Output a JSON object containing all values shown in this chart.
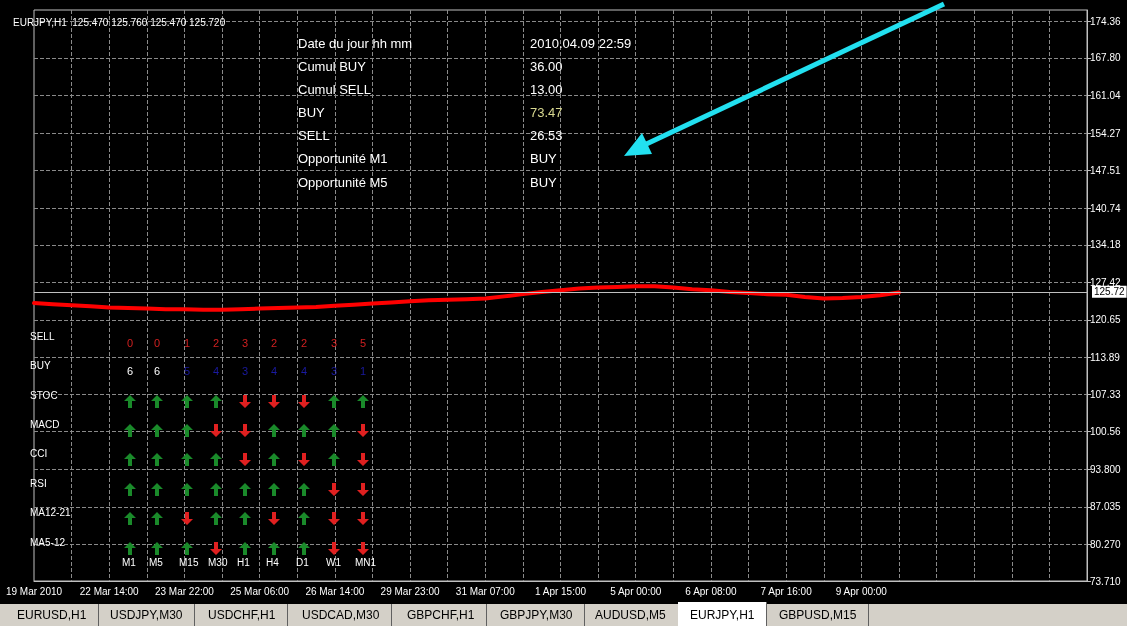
{
  "chart_data": {
    "type": "line",
    "title": "EURJPY,H1  125.470 125.760 125.470 125.720",
    "categories": [
      "19 Mar 2010",
      null,
      null,
      null,
      "22 Mar 14:00",
      null,
      null,
      null,
      "23 Mar 22:00",
      null,
      null,
      null,
      "25 Mar 06:00",
      null,
      null,
      null,
      "26 Mar 14:00",
      null,
      null,
      null,
      "29 Mar 23:00",
      null,
      null,
      null,
      "31 Mar 07:00",
      null,
      null,
      null,
      "1 Apr 15:00",
      null,
      null,
      null,
      "5 Apr 00:00",
      null,
      null,
      null,
      "6 Apr 08:00",
      null,
      null,
      null,
      "7 Apr 16:00",
      null,
      null,
      null,
      "9 Apr 00:00",
      null,
      null,
      null,
      null,
      null,
      null,
      null,
      null,
      null,
      null,
      null,
      null
    ],
    "series": [
      {
        "color": "#ff0000",
        "values": [
          123.7,
          123.5,
          123.3,
          123.1,
          122.9,
          122.8,
          122.7,
          122.6,
          122.6,
          122.5,
          122.5,
          122.6,
          122.7,
          122.8,
          122.9,
          123.0,
          123.2,
          123.4,
          123.6,
          123.8,
          124.0,
          124.2,
          124.3,
          124.4,
          124.5,
          124.9,
          125.3,
          125.7,
          126.0,
          126.3,
          126.5,
          126.6,
          126.7,
          126.7,
          126.5,
          126.2,
          126.0,
          125.7,
          125.5,
          125.3,
          125.2,
          124.8,
          124.5,
          124.6,
          124.8,
          125.1,
          125.6,
          null,
          null,
          null,
          null,
          null,
          null,
          null,
          null,
          null,
          null
        ]
      }
    ],
    "ylim": [
      73.71,
      176.4
    ],
    "yticks": [
      174.36,
      {
        "value": 167.8,
        "label": "167.80"
      },
      161.04,
      154.27,
      147.51,
      140.74,
      134.18,
      127.42,
      120.65,
      113.89,
      107.33,
      100.56,
      {
        "value": 93.8,
        "label": "93.800"
      },
      87.035,
      {
        "value": 80.27,
        "label": "80.270"
      },
      {
        "value": 73.71,
        "label": "73.710"
      }
    ],
    "ref_lines": [
      {
        "axis": "y",
        "value": 125.72,
        "label": "125.72",
        "color": "#c0c0c0"
      }
    ],
    "grid": true,
    "marker": "none",
    "line_style": "solid",
    "annotations": [
      "Date du jour hh mm",
      "2010.04.09 22:59",
      "Cumul BUY",
      "36.00",
      "Cumul SELL",
      "13.00",
      "BUY",
      "73.47",
      "SELL",
      "26.53",
      "Opportunité M1",
      "BUY",
      "Opportunité M5",
      "BUY",
      "SELL",
      "BUY",
      "STOC",
      "MACD",
      "CCI",
      "RSI",
      "MA12-21",
      "MA5-12",
      "0",
      "0",
      "1",
      "2",
      "3",
      "2",
      "2",
      "3",
      "5",
      "6",
      "6",
      "5",
      "4",
      "3",
      "4",
      "4",
      "3",
      "1",
      "M1",
      "M5",
      "M15",
      "M30",
      "H1",
      "H4",
      "D1",
      "W1",
      "MN1",
      "EURUSD,H1",
      "USDJPY,M30",
      "USDCHF,H1",
      "USDCAD,M30",
      "GBPCHF,H1",
      "GBPJPY,M30",
      "AUDUSD,M5",
      "EURJPY,H1",
      "GBPUSD,M15"
    ]
  }
}
